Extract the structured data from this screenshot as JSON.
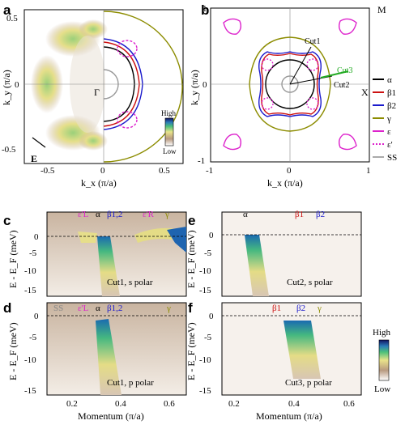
{
  "figure": {
    "panel_labels": [
      "a",
      "b",
      "c",
      "d",
      "e",
      "f"
    ],
    "colors": {
      "alpha": "#000000",
      "beta1": "#cc1111",
      "beta2": "#1a1acc",
      "gamma": "#8c8c00",
      "epsilon": "#dd22cc",
      "ss": "#aaaaaa",
      "cut3": "#22aa22"
    }
  },
  "panel_a": {
    "ylabel": "k_y (π/a)",
    "xlabel": "k_x (π/a)",
    "yticks": [
      "0.5",
      "0",
      "-0.5"
    ],
    "xticks": [
      "-0.5",
      "0",
      "0.5"
    ],
    "gamma_label": "Γ",
    "e_label": "E",
    "colorbar_high": "High",
    "colorbar_low": "Low"
  },
  "panel_b": {
    "ylabel": "k_y (π/a)",
    "xlabel": "k_x (π/a)",
    "yticks": [
      "1",
      "0",
      "-1"
    ],
    "xticks": [
      "-1",
      "0",
      "1"
    ],
    "m_label": "M",
    "x_label": "X",
    "cut1": "Cut1",
    "cut2": "Cut2",
    "cut3": "Cut3",
    "legend": [
      {
        "label": "α",
        "color": "#000000",
        "dash": false
      },
      {
        "label": "β1",
        "color": "#cc1111",
        "dash": false
      },
      {
        "label": "β2",
        "color": "#1a1acc",
        "dash": false
      },
      {
        "label": "γ",
        "color": "#8c8c00",
        "dash": false
      },
      {
        "label": "ε",
        "color": "#dd22cc",
        "dash": false
      },
      {
        "label": "ε'",
        "color": "#dd22cc",
        "dash": true
      },
      {
        "label": "SS",
        "color": "#aaaaaa",
        "dash": false
      }
    ]
  },
  "panel_c": {
    "ylabel": "E - E_F (meV)",
    "yticks": [
      "0",
      "-5",
      "-10",
      "-15"
    ],
    "caption": "Cut1, s polar",
    "markers": [
      "ε'L",
      "α",
      "β1,2",
      "ε'R",
      "γ"
    ]
  },
  "panel_d": {
    "ylabel": "E - E_F (meV)",
    "yticks": [
      "0",
      "-5",
      "-10",
      "-15"
    ],
    "caption": "Cut1, p polar",
    "xlabel": "Momentum (π/a)",
    "xticks": [
      "0.2",
      "0.4",
      "0.6"
    ],
    "markers": [
      "SS",
      "ε'L",
      "α",
      "β1,2",
      "γ"
    ]
  },
  "panel_e": {
    "ylabel": "E - E_F (meV)",
    "yticks": [
      "0",
      "-5",
      "-10",
      "-15"
    ],
    "caption": "Cut2, s polar",
    "markers": [
      "α",
      "β1",
      "β2"
    ]
  },
  "panel_f": {
    "ylabel": "E - E_F (meV)",
    "yticks": [
      "0",
      "-5",
      "-10",
      "-15"
    ],
    "caption": "Cut3, p polar",
    "xlabel": "Momentum (π/a)",
    "xticks": [
      "0.2",
      "0.4",
      "0.6"
    ],
    "markers": [
      "β1",
      "β2",
      "γ"
    ],
    "colorbar_high": "High",
    "colorbar_low": "Low"
  }
}
